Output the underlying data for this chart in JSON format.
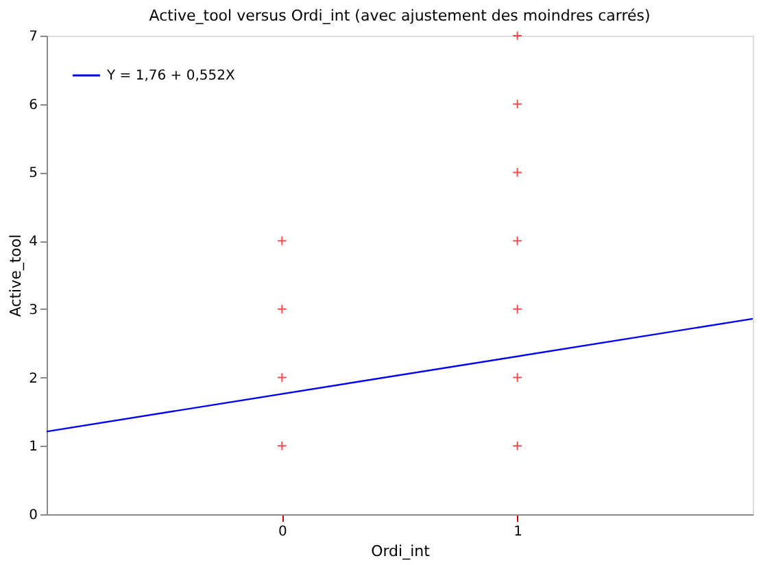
{
  "chart_data": {
    "type": "scatter",
    "title": "Active_tool versus Ordi_int (avec ajustement des moindres carrés)",
    "xlabel": "Ordi_int",
    "ylabel": "Active_tool",
    "xlim": [
      -1,
      2
    ],
    "xticks": [
      0,
      1
    ],
    "ylim": [
      0,
      7
    ],
    "yticks": [
      0,
      1,
      2,
      3,
      4,
      5,
      6,
      7
    ],
    "grid": false,
    "legend": "top left",
    "series": [
      {
        "color": "#ff0000",
        "marker": "cross",
        "x": [
          0,
          0,
          0,
          0,
          1,
          1,
          1,
          1,
          1,
          1,
          1
        ],
        "values": [
          1,
          2,
          3,
          4,
          1,
          2,
          3,
          4,
          5,
          6,
          7
        ]
      },
      {
        "type": "line",
        "name": "Y = 1,76 + 0,552X",
        "color": "#0000ff",
        "line_style": "solid",
        "x": [
          -1,
          2
        ],
        "values": [
          1.21,
          2.86
        ]
      }
    ]
  }
}
